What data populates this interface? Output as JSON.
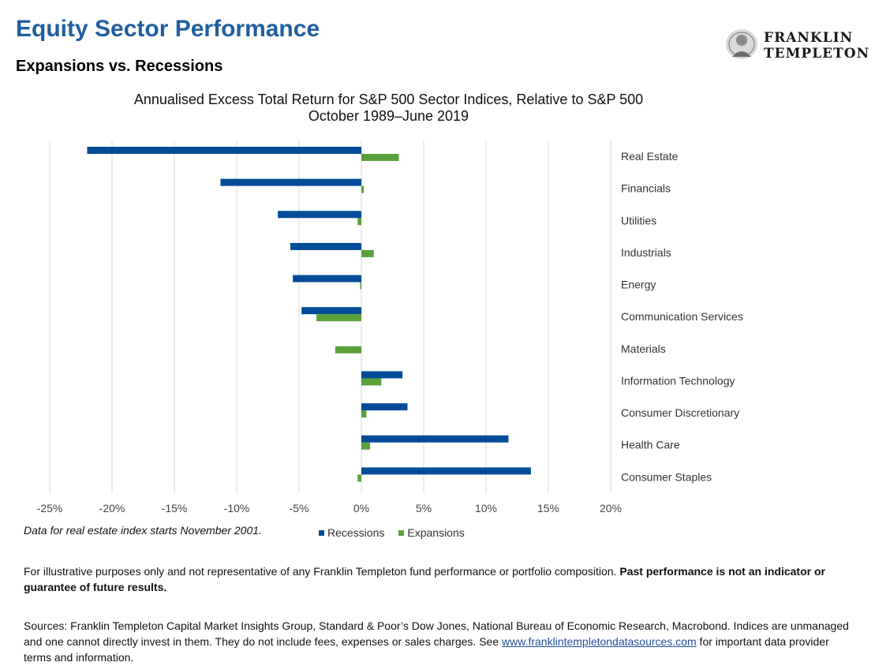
{
  "header": {
    "title": "Equity Sector Performance",
    "subtitle": "Expansions vs. Recessions"
  },
  "logo": {
    "line1": "FRANKLIN",
    "line2": "TEMPLETON"
  },
  "chart_data": {
    "type": "bar",
    "orientation": "horizontal",
    "title": "Annualised Excess Total Return for S&P 500 Sector Indices, Relative to S&P 500",
    "subtitle": "October 1989–June 2019",
    "categories": [
      "Real Estate",
      "Financials",
      "Utilities",
      "Industrials",
      "Energy",
      "Communication Services",
      "Materials",
      "Information Technology",
      "Consumer Discretionary",
      "Health Care",
      "Consumer Staples"
    ],
    "series": [
      {
        "name": "Recessions",
        "color": "#004c97",
        "values": [
          -22.0,
          -11.3,
          -6.7,
          -5.7,
          -5.5,
          -4.8,
          0.0,
          3.3,
          3.7,
          11.8,
          13.6
        ]
      },
      {
        "name": "Expansions",
        "color": "#5aa13c",
        "values": [
          3.0,
          0.2,
          -0.3,
          1.0,
          -0.1,
          -3.6,
          -2.1,
          1.6,
          0.4,
          0.7,
          -0.3
        ]
      }
    ],
    "xlim": [
      -25,
      20
    ],
    "xticks": [
      -25,
      -20,
      -15,
      -10,
      -5,
      0,
      5,
      10,
      15,
      20
    ],
    "xtick_labels": [
      "-25%",
      "-20%",
      "-15%",
      "-10%",
      "-5%",
      "0%",
      "5%",
      "10%",
      "15%",
      "20%"
    ],
    "grid": true,
    "legend_position": "bottom"
  },
  "note": "Data for real estate index starts November 2001.",
  "disclaimer": {
    "text": "For illustrative purposes only and not representative of any Franklin Templeton fund performance or portfolio composition. ",
    "bold": "Past performance is not an indicator or guarantee of future results."
  },
  "sources": {
    "before": "Sources: Franklin Templeton Capital Market Insights Group, Standard & Poor’s Dow Jones, National Bureau of Economic Research, Macrobond. Indices are unmanaged and one cannot directly invest in them. They do not include fees, expenses or sales charges. See ",
    "link": "www.franklintempletondatasources.com",
    "after": " for important data provider terms and information."
  }
}
